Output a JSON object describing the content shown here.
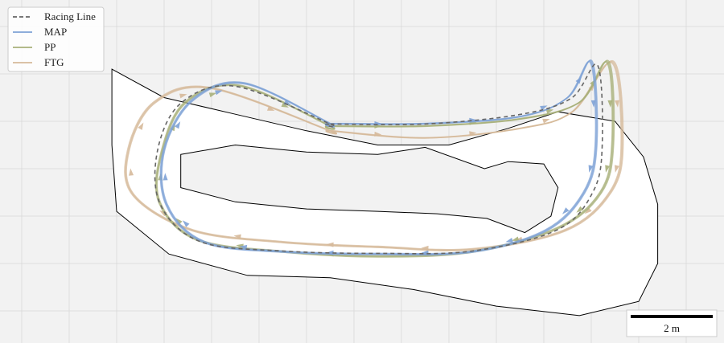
{
  "chart_data": {
    "type": "line",
    "title": "",
    "xlabel": "",
    "ylabel": "",
    "grid": true,
    "axes_visible": false,
    "legend_position": "top-left",
    "units": "m",
    "track": {
      "outer_boundary": [
        [
          -10.2,
          -4.2
        ],
        [
          -8,
          -3.0
        ],
        [
          -5,
          -2.3
        ],
        [
          -2,
          -1.6
        ],
        [
          1,
          -1.0
        ],
        [
          4,
          -1.0
        ],
        [
          6.5,
          -1.7
        ],
        [
          8.6,
          -2.4
        ],
        [
          11,
          -2.0
        ],
        [
          12.2,
          -0.5
        ],
        [
          12.8,
          1.5
        ],
        [
          12.8,
          4.0
        ],
        [
          12.0,
          5.6
        ],
        [
          9.5,
          6.2
        ],
        [
          6,
          5.8
        ],
        [
          2.5,
          5.1
        ],
        [
          -1,
          4.6
        ],
        [
          -4.5,
          4.5
        ],
        [
          -7.8,
          3.6
        ],
        [
          -10,
          1.8
        ],
        [
          -10.2,
          -1
        ],
        [
          -10.2,
          -4.2
        ]
      ],
      "inner_boundary": [
        [
          -7.3,
          -0.6
        ],
        [
          -5,
          -1.0
        ],
        [
          -2,
          -0.7
        ],
        [
          1,
          -0.6
        ],
        [
          3,
          -0.9
        ],
        [
          5.5,
          0
        ],
        [
          6.5,
          -0.3
        ],
        [
          8,
          -0.2
        ],
        [
          8.6,
          0.8
        ],
        [
          8.3,
          2.0
        ],
        [
          7.2,
          2.7
        ],
        [
          5.6,
          2.1
        ],
        [
          3.5,
          1.9
        ],
        [
          1,
          1.8
        ],
        [
          -2,
          1.7
        ],
        [
          -5,
          1.4
        ],
        [
          -7.3,
          0.8
        ],
        [
          -7.3,
          -0.6
        ]
      ]
    },
    "series": [
      {
        "name": "Racing Line",
        "color": "#666666",
        "style": "dashed",
        "x": [
          -1,
          3,
          7,
          9.2,
          10.3,
          10.5,
          10.1,
          8.6,
          5,
          1,
          -3,
          -6.5,
          -8.2,
          -8.3,
          -7.3,
          -5,
          -1
        ],
        "y": [
          -1.9,
          -1.9,
          -2.3,
          -3.0,
          -4.4,
          -1.0,
          1.0,
          2.6,
          3.5,
          3.6,
          3.5,
          3.1,
          1.5,
          -0.8,
          -2.8,
          -3.5,
          -1.9
        ]
      },
      {
        "name": "MAP",
        "color": "#7ea2d6",
        "style": "solid",
        "x": [
          -1,
          3,
          7,
          9,
          10.0,
          10.2,
          9.7,
          8.1,
          5,
          1,
          -3,
          -6.3,
          -7.9,
          -8.0,
          -6.8,
          -4.6,
          -1
        ],
        "y": [
          -1.9,
          -1.9,
          -2.2,
          -3.0,
          -4.5,
          -1.0,
          1.0,
          2.6,
          3.5,
          3.6,
          3.5,
          3.1,
          1.5,
          -0.8,
          -2.9,
          -3.6,
          -1.9
        ]
      },
      {
        "name": "PP",
        "color": "#a8b07a",
        "style": "solid",
        "x": [
          -1,
          3,
          7,
          9.5,
          10.7,
          10.9,
          10.4,
          8.6,
          5,
          1,
          -3,
          -6.6,
          -8.2,
          -8.1,
          -7.1,
          -4.8,
          -1
        ],
        "y": [
          -1.8,
          -1.8,
          -2.1,
          -2.8,
          -4.5,
          -1.0,
          1.0,
          2.5,
          3.5,
          3.7,
          3.5,
          3.0,
          1.4,
          -0.7,
          -2.8,
          -3.5,
          -1.8
        ]
      },
      {
        "name": "FTG",
        "color": "#d6b99a",
        "style": "solid",
        "x": [
          -1,
          3,
          7,
          9.2,
          10.9,
          11.3,
          10.8,
          8.9,
          5,
          1,
          -3,
          -6.8,
          -9.3,
          -9.5,
          -8.4,
          -6.0,
          -1
        ],
        "y": [
          -1.6,
          -1.3,
          -1.7,
          -2.4,
          -4.5,
          -1.0,
          1.0,
          2.6,
          3.4,
          3.3,
          3.1,
          2.6,
          1.1,
          -0.8,
          -2.8,
          -3.4,
          -1.6
        ]
      }
    ],
    "scale_bar": {
      "label": "2 m",
      "length_m": 2
    }
  },
  "colors": {
    "background": "#f2f2f2",
    "grid": "#dddddd",
    "track": "#ffffff",
    "boundary": "#000000"
  }
}
